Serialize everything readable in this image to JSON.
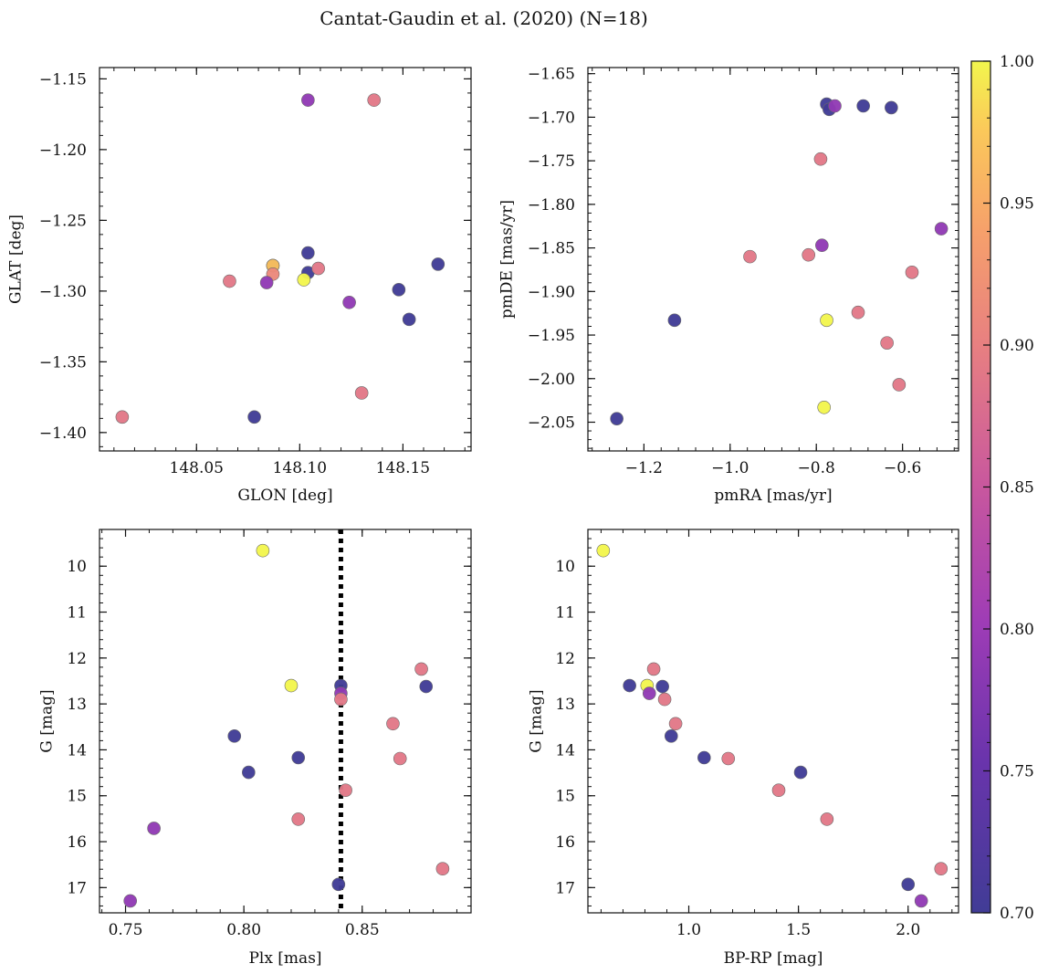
{
  "figure": {
    "suptitle": "Cantat-Gaudin et al. (2020) (N=18)"
  },
  "chart_data": [
    {
      "type": "scatter",
      "xlabel": "GLON [deg]",
      "ylabel": "GLAT [deg]",
      "xlim": [
        148.003,
        148.183
      ],
      "ylim": [
        -1.413,
        -1.142
      ],
      "xticks": [
        148.05,
        148.1,
        148.15
      ],
      "xtick_labels": [
        "148.05",
        "148.10",
        "148.15"
      ],
      "yticks": [
        -1.4,
        -1.35,
        -1.3,
        -1.25,
        -1.2,
        -1.15
      ],
      "ytick_labels": [
        "−1.40",
        "−1.35",
        "−1.30",
        "−1.25",
        "−1.20",
        "−1.15"
      ],
      "y_inverted": false,
      "points": [
        {
          "x": 148.104,
          "y": -1.165,
          "c": 0.79
        },
        {
          "x": 148.136,
          "y": -1.165,
          "c": 0.89
        },
        {
          "x": 148.104,
          "y": -1.273,
          "c": 0.7
        },
        {
          "x": 148.087,
          "y": -1.282,
          "c": 0.7
        },
        {
          "x": 148.087,
          "y": -1.282,
          "c": 0.97
        },
        {
          "x": 148.087,
          "y": -1.288,
          "c": 0.91
        },
        {
          "x": 148.104,
          "y": -1.287,
          "c": 0.7
        },
        {
          "x": 148.109,
          "y": -1.284,
          "c": 0.89
        },
        {
          "x": 148.167,
          "y": -1.281,
          "c": 0.7
        },
        {
          "x": 148.066,
          "y": -1.293,
          "c": 0.89
        },
        {
          "x": 148.084,
          "y": -1.294,
          "c": 0.79
        },
        {
          "x": 148.102,
          "y": -1.292,
          "c": 1.0
        },
        {
          "x": 148.148,
          "y": -1.299,
          "c": 0.7
        },
        {
          "x": 148.124,
          "y": -1.308,
          "c": 0.79
        },
        {
          "x": 148.153,
          "y": -1.32,
          "c": 0.7
        },
        {
          "x": 148.13,
          "y": -1.372,
          "c": 0.89
        },
        {
          "x": 148.078,
          "y": -1.389,
          "c": 0.7
        },
        {
          "x": 148.014,
          "y": -1.389,
          "c": 0.89
        }
      ]
    },
    {
      "type": "scatter",
      "xlabel": "pmRA [mas/yr]",
      "ylabel": "pmDE [mas/yr]",
      "xlim": [
        -1.33,
        -0.47
      ],
      "ylim": [
        -2.083,
        -1.643
      ],
      "xticks": [
        -1.2,
        -1.0,
        -0.8,
        -0.6
      ],
      "xtick_labels": [
        "−1.2",
        "−1.0",
        "−0.8",
        "−0.6"
      ],
      "yticks": [
        -2.05,
        -2.0,
        -1.95,
        -1.9,
        -1.85,
        -1.8,
        -1.75,
        -1.7,
        -1.65
      ],
      "ytick_labels": [
        "−2.05",
        "−2.00",
        "−1.95",
        "−1.90",
        "−1.85",
        "−1.80",
        "−1.75",
        "−1.70",
        "−1.65"
      ],
      "y_inverted": false,
      "points": [
        {
          "x": -0.776,
          "y": -1.685,
          "c": 0.7
        },
        {
          "x": -0.77,
          "y": -1.691,
          "c": 0.7
        },
        {
          "x": -0.757,
          "y": -1.687,
          "c": 0.79
        },
        {
          "x": -0.691,
          "y": -1.687,
          "c": 0.7
        },
        {
          "x": -0.626,
          "y": -1.689,
          "c": 0.7
        },
        {
          "x": -0.79,
          "y": -1.748,
          "c": 0.89
        },
        {
          "x": -0.51,
          "y": -1.828,
          "c": 0.79
        },
        {
          "x": -0.787,
          "y": -1.847,
          "c": 0.79
        },
        {
          "x": -0.818,
          "y": -1.858,
          "c": 0.89
        },
        {
          "x": -0.954,
          "y": -1.86,
          "c": 0.89
        },
        {
          "x": -0.578,
          "y": -1.878,
          "c": 0.89
        },
        {
          "x": -1.129,
          "y": -1.933,
          "c": 0.7
        },
        {
          "x": -0.776,
          "y": -1.933,
          "c": 1.0
        },
        {
          "x": -0.703,
          "y": -1.924,
          "c": 0.89
        },
        {
          "x": -0.636,
          "y": -1.959,
          "c": 0.89
        },
        {
          "x": -0.608,
          "y": -2.007,
          "c": 0.89
        },
        {
          "x": -0.782,
          "y": -2.033,
          "c": 1.0
        },
        {
          "x": -1.263,
          "y": -2.046,
          "c": 0.7
        }
      ]
    },
    {
      "type": "scatter",
      "xlabel": "Plx [mas]",
      "ylabel": "G [mag]",
      "xlim": [
        0.739,
        0.896
      ],
      "ylim": [
        17.55,
        9.2
      ],
      "xticks": [
        0.75,
        0.8,
        0.85
      ],
      "xtick_labels": [
        "0.75",
        "0.80",
        "0.85"
      ],
      "yticks": [
        10,
        11,
        12,
        13,
        14,
        15,
        16,
        17
      ],
      "ytick_labels": [
        "10",
        "11",
        "12",
        "13",
        "14",
        "15",
        "16",
        "17"
      ],
      "y_inverted": true,
      "vline": {
        "x": 0.841,
        "style": "dotted"
      },
      "points": [
        {
          "x": 0.808,
          "y": 9.66,
          "c": 1.0
        },
        {
          "x": 0.875,
          "y": 12.24,
          "c": 0.89
        },
        {
          "x": 0.82,
          "y": 12.6,
          "c": 1.0
        },
        {
          "x": 0.841,
          "y": 12.6,
          "c": 0.7
        },
        {
          "x": 0.877,
          "y": 12.62,
          "c": 0.7
        },
        {
          "x": 0.841,
          "y": 12.77,
          "c": 0.79
        },
        {
          "x": 0.841,
          "y": 12.9,
          "c": 0.89
        },
        {
          "x": 0.863,
          "y": 13.43,
          "c": 0.89
        },
        {
          "x": 0.796,
          "y": 13.7,
          "c": 0.7
        },
        {
          "x": 0.823,
          "y": 14.17,
          "c": 0.7
        },
        {
          "x": 0.866,
          "y": 14.19,
          "c": 0.89
        },
        {
          "x": 0.802,
          "y": 14.49,
          "c": 0.7
        },
        {
          "x": 0.843,
          "y": 14.88,
          "c": 0.89
        },
        {
          "x": 0.823,
          "y": 15.51,
          "c": 0.89
        },
        {
          "x": 0.762,
          "y": 15.71,
          "c": 0.79
        },
        {
          "x": 0.884,
          "y": 16.59,
          "c": 0.89
        },
        {
          "x": 0.84,
          "y": 16.93,
          "c": 0.7
        },
        {
          "x": 0.752,
          "y": 17.29,
          "c": 0.79
        }
      ]
    },
    {
      "type": "scatter",
      "xlabel": "BP-RP [mag]",
      "ylabel": "G [mag]",
      "xlim": [
        0.54,
        2.23
      ],
      "ylim": [
        17.55,
        9.2
      ],
      "xticks": [
        1.0,
        1.5,
        2.0
      ],
      "xtick_labels": [
        "1.0",
        "1.5",
        "2.0"
      ],
      "yticks": [
        10,
        11,
        12,
        13,
        14,
        15,
        16,
        17
      ],
      "ytick_labels": [
        "10",
        "11",
        "12",
        "13",
        "14",
        "15",
        "16",
        "17"
      ],
      "y_inverted": true,
      "points": [
        {
          "x": 0.61,
          "y": 9.66,
          "c": 1.0
        },
        {
          "x": 0.84,
          "y": 12.24,
          "c": 0.89
        },
        {
          "x": 0.73,
          "y": 12.6,
          "c": 0.7
        },
        {
          "x": 0.81,
          "y": 12.6,
          "c": 1.0
        },
        {
          "x": 0.88,
          "y": 12.62,
          "c": 0.7
        },
        {
          "x": 0.82,
          "y": 12.77,
          "c": 0.79
        },
        {
          "x": 0.89,
          "y": 12.9,
          "c": 0.89
        },
        {
          "x": 0.94,
          "y": 13.43,
          "c": 0.89
        },
        {
          "x": 0.92,
          "y": 13.7,
          "c": 0.7
        },
        {
          "x": 1.07,
          "y": 14.17,
          "c": 0.7
        },
        {
          "x": 1.18,
          "y": 14.19,
          "c": 0.89
        },
        {
          "x": 1.51,
          "y": 14.49,
          "c": 0.7
        },
        {
          "x": 1.41,
          "y": 14.88,
          "c": 0.89
        },
        {
          "x": 1.63,
          "y": 15.51,
          "c": 0.89
        },
        {
          "x": 2.15,
          "y": 16.59,
          "c": 0.89
        },
        {
          "x": 2.0,
          "y": 16.93,
          "c": 0.7
        },
        {
          "x": 2.06,
          "y": 17.29,
          "c": 0.79
        }
      ]
    }
  ],
  "colorbar": {
    "cmap": "plasma",
    "min": 0.7,
    "max": 1.0,
    "ticks": [
      0.7,
      0.75,
      0.8,
      0.85,
      0.9,
      0.95,
      1.0
    ],
    "tick_labels": [
      "0.70",
      "0.75",
      "0.80",
      "0.85",
      "0.90",
      "0.95",
      "1.00"
    ]
  }
}
